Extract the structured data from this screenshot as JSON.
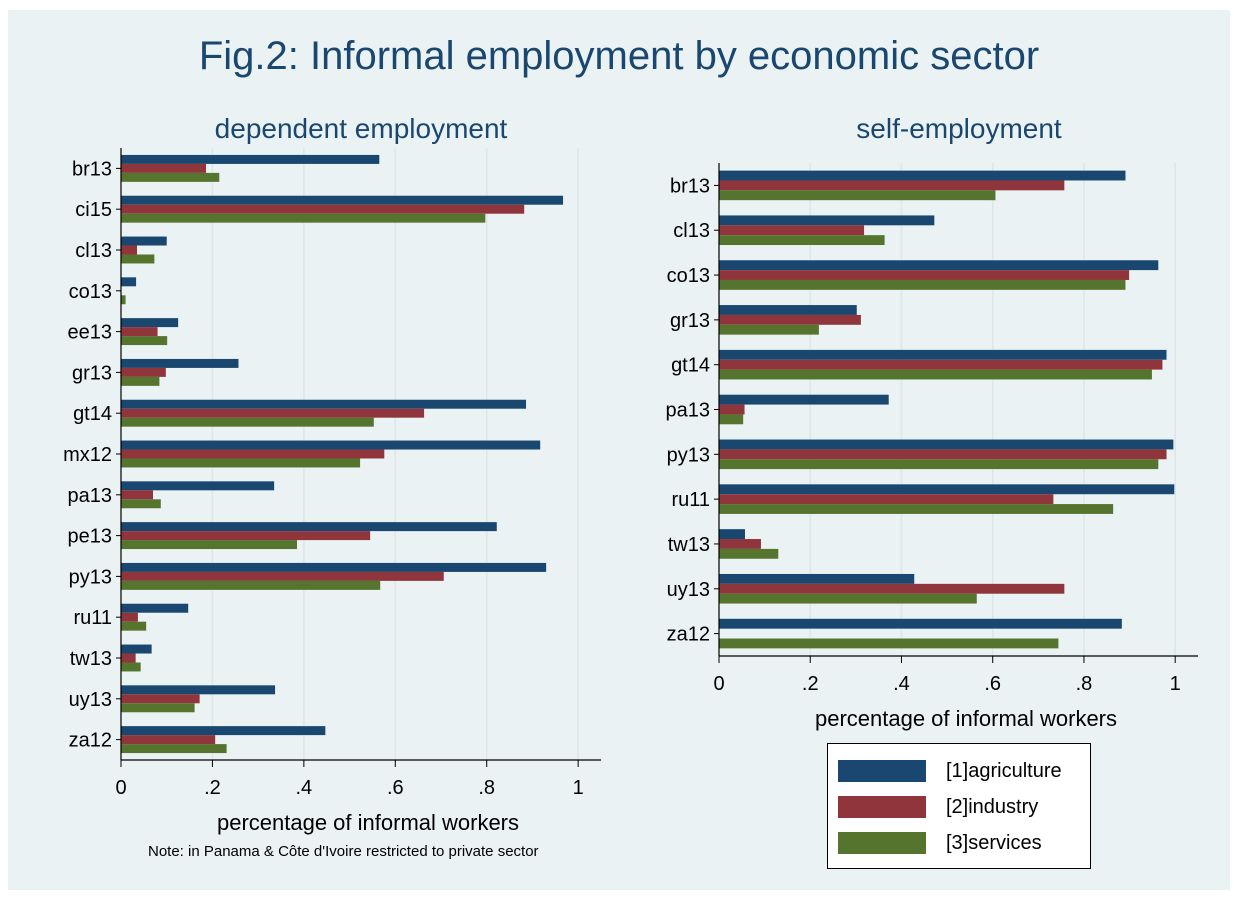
{
  "title": "Fig.2: Informal employment by economic sector",
  "legend": [
    {
      "label": "[1]agriculture",
      "color": "#1a476f"
    },
    {
      "label": "[2]industry",
      "color": "#90353b"
    },
    {
      "label": "[3]services",
      "color": "#55752f"
    }
  ],
  "chart_data": [
    {
      "type": "bar",
      "orientation": "horizontal",
      "title": "dependent employment",
      "xlabel": "percentage of informal workers",
      "note": "Note: in Panama & Côte d'Ivoire restricted to private sector",
      "xlim": [
        0,
        1.05
      ],
      "xticks": [
        0,
        0.2,
        0.4,
        0.6,
        0.8,
        1
      ],
      "xtick_labels": [
        "0",
        ".2",
        ".4",
        ".6",
        ".8",
        "1"
      ],
      "grid": true,
      "categories": [
        "br13",
        "ci15",
        "cl13",
        "co13",
        "ee13",
        "gr13",
        "gt14",
        "mx12",
        "pa13",
        "pe13",
        "py13",
        "ru11",
        "tw13",
        "uy13",
        "za12"
      ],
      "series": [
        {
          "name": "[1]agriculture",
          "values": [
            0.565,
            0.967,
            0.1,
            0.033,
            0.125,
            0.257,
            0.886,
            0.917,
            0.335,
            0.822,
            0.93,
            0.147,
            0.067,
            0.337,
            0.447
          ]
        },
        {
          "name": "[2]industry",
          "values": [
            0.186,
            0.882,
            0.035,
            0.0,
            0.08,
            0.098,
            0.663,
            0.576,
            0.07,
            0.545,
            0.706,
            0.037,
            0.032,
            0.172,
            0.206
          ]
        },
        {
          "name": "[3]services",
          "values": [
            0.215,
            0.797,
            0.073,
            0.01,
            0.101,
            0.084,
            0.553,
            0.523,
            0.087,
            0.385,
            0.567,
            0.055,
            0.043,
            0.161,
            0.231
          ]
        }
      ]
    },
    {
      "type": "bar",
      "orientation": "horizontal",
      "title": "self-employment",
      "xlabel": "percentage of informal workers",
      "xlim": [
        0,
        1.05
      ],
      "xticks": [
        0,
        0.2,
        0.4,
        0.6,
        0.8,
        1
      ],
      "xtick_labels": [
        "0",
        ".2",
        ".4",
        ".6",
        ".8",
        "1"
      ],
      "grid": true,
      "categories": [
        "br13",
        "cl13",
        "co13",
        "gr13",
        "gt14",
        "pa13",
        "py13",
        "ru11",
        "tw13",
        "uy13",
        "za12"
      ],
      "series": [
        {
          "name": "[1]agriculture",
          "values": [
            0.891,
            0.472,
            0.963,
            0.302,
            0.981,
            0.372,
            0.996,
            0.998,
            0.057,
            0.428,
            0.883
          ]
        },
        {
          "name": "[2]industry",
          "values": [
            0.757,
            0.318,
            0.899,
            0.311,
            0.972,
            0.056,
            0.981,
            0.733,
            0.092,
            0.757,
            0.0
          ]
        },
        {
          "name": "[3]services",
          "values": [
            0.606,
            0.363,
            0.891,
            0.219,
            0.949,
            0.053,
            0.963,
            0.864,
            0.13,
            0.565,
            0.744
          ]
        }
      ]
    }
  ]
}
